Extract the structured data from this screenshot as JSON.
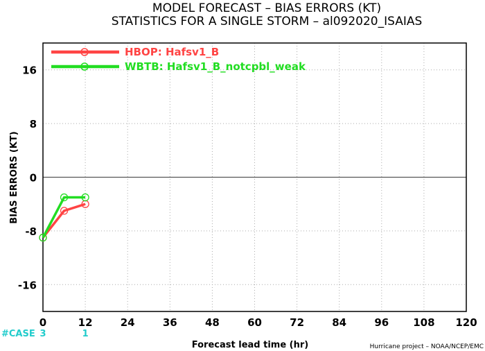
{
  "chart_data": {
    "type": "line",
    "title": "MODEL FORECAST – BIAS ERRORS (KT)",
    "subtitle": "STATISTICS FOR A SINGLE STORM – al092020_ISAIAS",
    "xlabel": "Forecast lead time (hr)",
    "ylabel": "BIAS ERRORS (KT)",
    "xlim": [
      0,
      120
    ],
    "ylim": [
      -20,
      20
    ],
    "xticks": [
      "0",
      "12",
      "24",
      "36",
      "48",
      "60",
      "72",
      "84",
      "96",
      "108",
      "120"
    ],
    "yticks": [
      "16",
      "8",
      "0",
      "-8",
      "-16"
    ],
    "grid": true,
    "legend_position": "top-left",
    "series": [
      {
        "name": "HBOP: Hafsv1_B",
        "color": "#ff4444",
        "x": [
          0,
          6,
          12
        ],
        "y": [
          -9.0,
          -5.0,
          -4.0
        ]
      },
      {
        "name": "WBTB: Hafsv1_B_notcpbl_weak",
        "color": "#22dd22",
        "x": [
          0,
          6,
          12
        ],
        "y": [
          -9.0,
          -3.0,
          -3.0
        ]
      }
    ],
    "case_counts": {
      "label": "#CASE",
      "color": "#22cccc",
      "x": [
        0,
        12
      ],
      "values": [
        "3",
        "1"
      ]
    },
    "credit": "Hurricane project – NOAA/NCEP/EMC"
  }
}
